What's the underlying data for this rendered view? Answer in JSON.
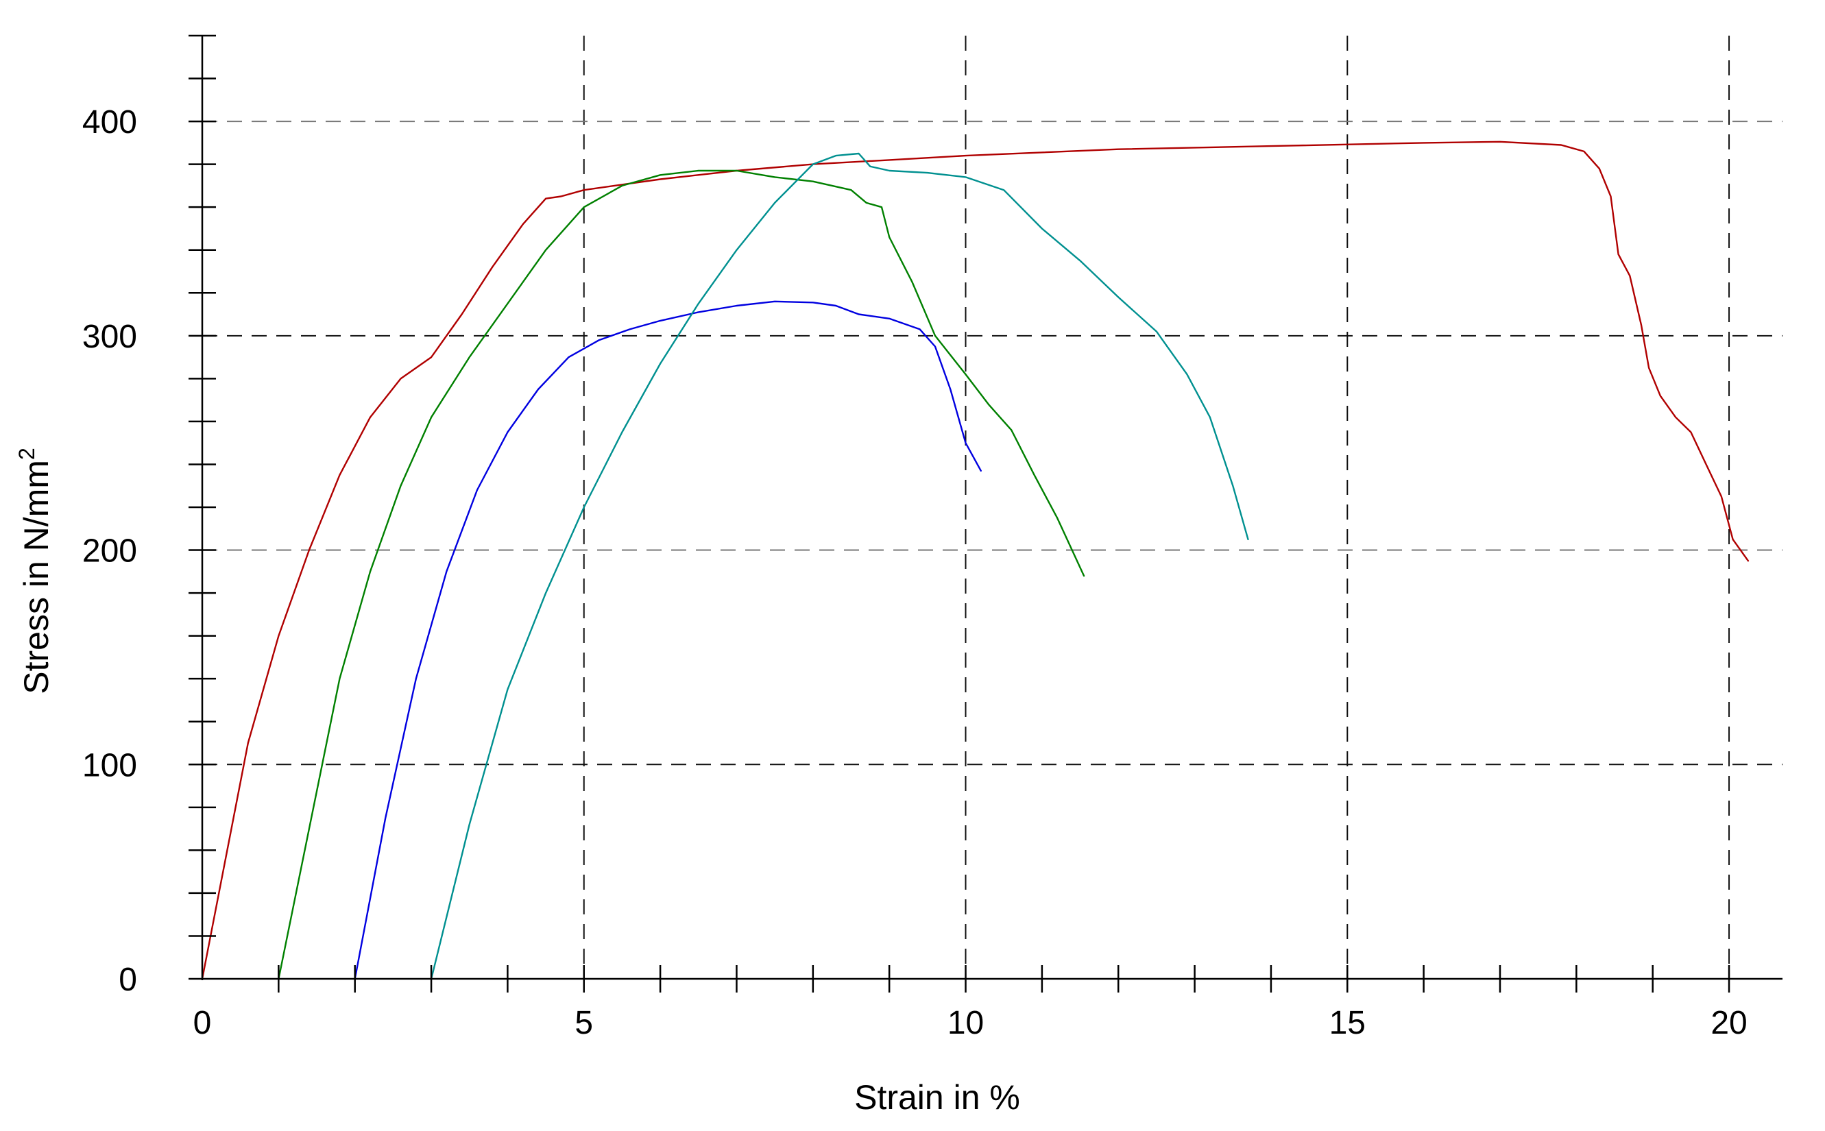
{
  "chart_data": {
    "type": "line",
    "title": "",
    "xlabel": "Strain in %",
    "ylabel_main": "Stress in N/mm",
    "ylabel_sup": "2",
    "xlim": [
      0,
      20.7
    ],
    "ylim": [
      0,
      440
    ],
    "x_ticks": [
      0,
      5,
      10,
      15,
      20
    ],
    "x_tick_labels": [
      "0",
      "5",
      "10",
      "15",
      "20"
    ],
    "y_ticks": [
      0,
      100,
      200,
      300,
      400
    ],
    "y_tick_labels": [
      "0",
      "100",
      "200",
      "300",
      "400"
    ],
    "grid": true,
    "legend": "none",
    "series": [
      {
        "color": "#b00000",
        "points": [
          [
            0,
            0
          ],
          [
            0.3,
            55
          ],
          [
            0.6,
            110
          ],
          [
            1.0,
            160
          ],
          [
            1.4,
            200
          ],
          [
            1.8,
            235
          ],
          [
            2.2,
            262
          ],
          [
            2.6,
            280
          ],
          [
            3.0,
            290
          ],
          [
            3.4,
            310
          ],
          [
            3.8,
            332
          ],
          [
            4.2,
            352
          ],
          [
            4.5,
            364
          ],
          [
            4.7,
            365
          ],
          [
            5.0,
            368
          ],
          [
            6.0,
            373
          ],
          [
            7.0,
            377
          ],
          [
            8.0,
            380
          ],
          [
            9.0,
            382
          ],
          [
            10.0,
            384
          ],
          [
            12.0,
            387
          ],
          [
            14.0,
            388.5
          ],
          [
            16.0,
            390
          ],
          [
            17.0,
            390.5
          ],
          [
            17.8,
            389
          ],
          [
            18.1,
            386
          ],
          [
            18.3,
            378
          ],
          [
            18.45,
            365
          ],
          [
            18.55,
            338
          ],
          [
            18.7,
            328
          ],
          [
            18.85,
            305
          ],
          [
            18.95,
            285
          ],
          [
            19.1,
            272
          ],
          [
            19.3,
            262
          ],
          [
            19.5,
            255
          ],
          [
            19.7,
            240
          ],
          [
            19.9,
            225
          ],
          [
            20.05,
            205
          ],
          [
            20.25,
            195
          ]
        ]
      },
      {
        "color": "#008000",
        "points": [
          [
            1.0,
            0
          ],
          [
            1.4,
            70
          ],
          [
            1.8,
            140
          ],
          [
            2.2,
            190
          ],
          [
            2.6,
            230
          ],
          [
            3.0,
            262
          ],
          [
            3.5,
            290
          ],
          [
            4.0,
            315
          ],
          [
            4.5,
            340
          ],
          [
            5.0,
            360
          ],
          [
            5.5,
            370
          ],
          [
            6.0,
            375
          ],
          [
            6.5,
            377
          ],
          [
            7.0,
            377
          ],
          [
            7.5,
            374
          ],
          [
            8.0,
            372
          ],
          [
            8.5,
            368
          ],
          [
            8.7,
            362
          ],
          [
            8.9,
            360
          ],
          [
            9.0,
            346
          ],
          [
            9.3,
            325
          ],
          [
            9.6,
            300
          ],
          [
            10.0,
            282
          ],
          [
            10.3,
            268
          ],
          [
            10.6,
            256
          ],
          [
            10.9,
            235
          ],
          [
            11.2,
            215
          ],
          [
            11.55,
            188
          ]
        ]
      },
      {
        "color": "#0000e0",
        "points": [
          [
            2.0,
            0
          ],
          [
            2.4,
            75
          ],
          [
            2.8,
            140
          ],
          [
            3.2,
            190
          ],
          [
            3.6,
            228
          ],
          [
            4.0,
            255
          ],
          [
            4.4,
            275
          ],
          [
            4.8,
            290
          ],
          [
            5.2,
            298
          ],
          [
            5.6,
            303
          ],
          [
            6.0,
            307
          ],
          [
            6.5,
            311
          ],
          [
            7.0,
            314
          ],
          [
            7.5,
            316
          ],
          [
            8.0,
            315.5
          ],
          [
            8.3,
            314
          ],
          [
            8.6,
            310
          ],
          [
            9.0,
            308
          ],
          [
            9.4,
            303
          ],
          [
            9.6,
            295
          ],
          [
            9.8,
            275
          ],
          [
            10.0,
            250
          ],
          [
            10.2,
            237
          ]
        ]
      },
      {
        "color": "#009090",
        "points": [
          [
            3.0,
            0
          ],
          [
            3.5,
            72
          ],
          [
            4.0,
            135
          ],
          [
            4.5,
            180
          ],
          [
            5.0,
            220
          ],
          [
            5.5,
            255
          ],
          [
            6.0,
            287
          ],
          [
            6.5,
            315
          ],
          [
            7.0,
            340
          ],
          [
            7.5,
            362
          ],
          [
            8.0,
            380
          ],
          [
            8.3,
            384
          ],
          [
            8.6,
            385
          ],
          [
            8.75,
            379
          ],
          [
            9.0,
            377
          ],
          [
            9.5,
            376
          ],
          [
            10.0,
            374
          ],
          [
            10.5,
            368
          ],
          [
            11.0,
            350
          ],
          [
            11.5,
            335
          ],
          [
            12.0,
            318
          ],
          [
            12.5,
            302
          ],
          [
            12.9,
            282
          ],
          [
            13.2,
            262
          ],
          [
            13.5,
            230
          ],
          [
            13.7,
            205
          ]
        ]
      }
    ]
  }
}
